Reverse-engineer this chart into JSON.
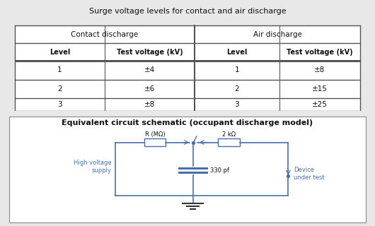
{
  "table_title": "Surge voltage levels for contact and air discharge",
  "col_headers": [
    "Contact discharge",
    "Air discharge"
  ],
  "sub_headers": [
    "Level",
    "Test voltage (kV)",
    "Level",
    "Test voltage (kV)"
  ],
  "rows": [
    [
      "1",
      "±4",
      "1",
      "±8"
    ],
    [
      "2",
      "±6",
      "2",
      "±15"
    ],
    [
      "3",
      "±8",
      "3",
      "±25"
    ]
  ],
  "circuit_title": "Equivalent circuit schematic (occupant discharge model)",
  "r_label": "R (MΩ)",
  "r2_label": "2 kΩ",
  "cap_label": "330 pf",
  "hv_label": "High voltage\nsupply",
  "dut_label": "Device\nunder test",
  "circuit_color": "#4a6fa5",
  "table_border_color": "#555555",
  "bg_color": "#ffffff",
  "fig_bg": "#e8e8e8"
}
